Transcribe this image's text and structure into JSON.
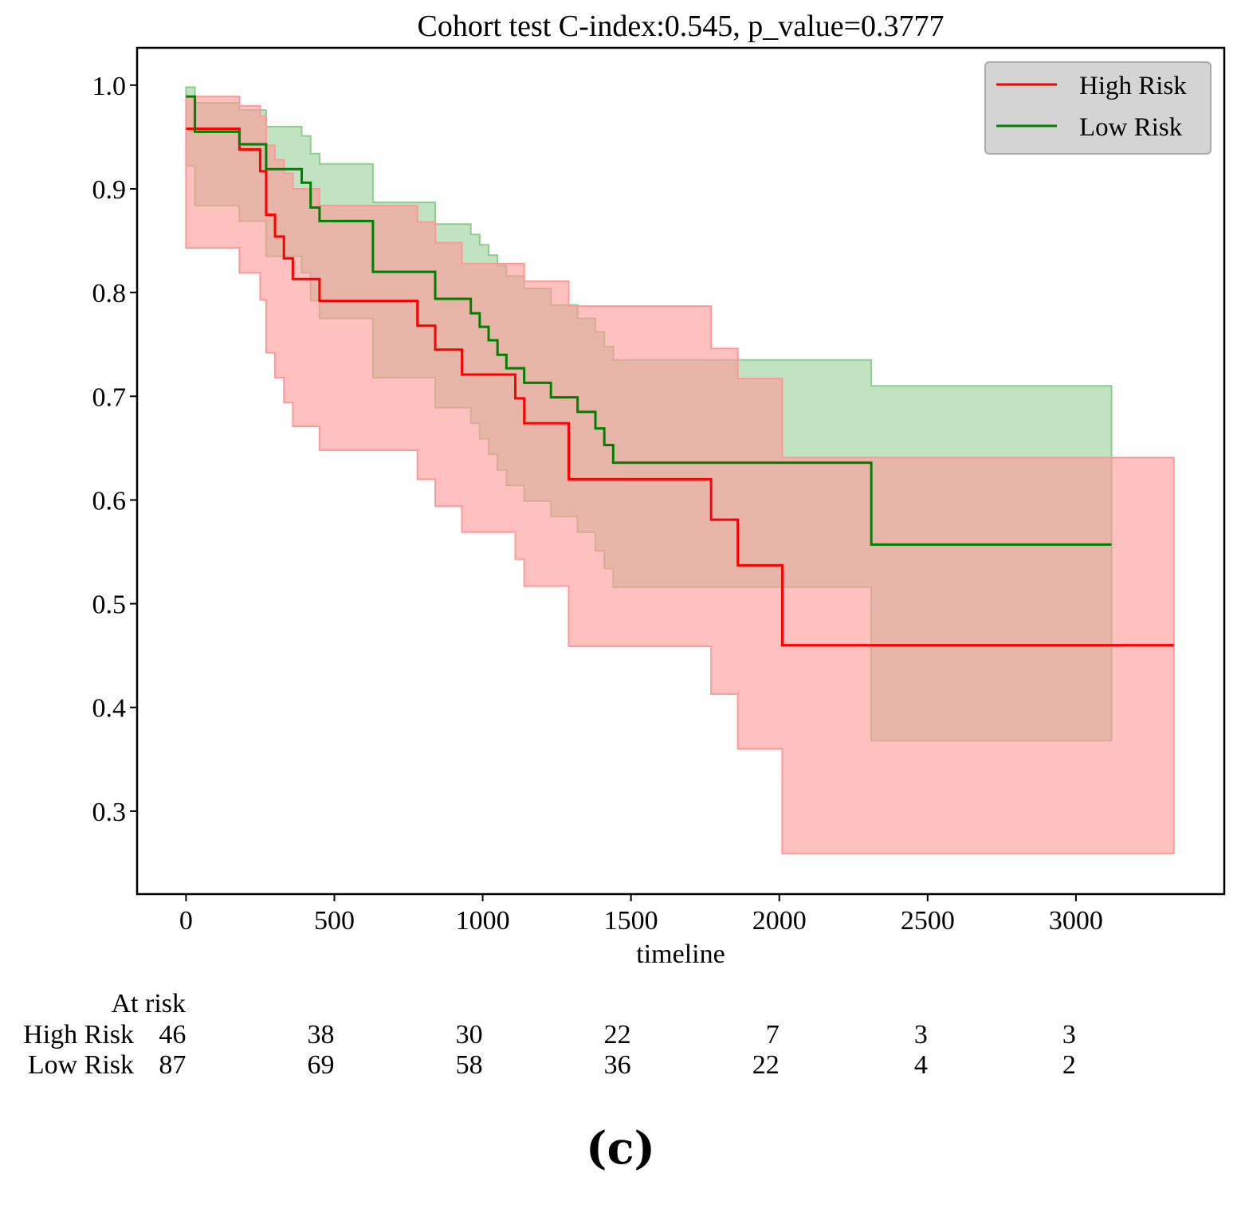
{
  "caption": "(c)",
  "chart_data": {
    "type": "line",
    "subtype": "kaplan-meier survival step curve with confidence bands",
    "title": "Cohort test C-index:0.545, p_value=0.3777",
    "xlabel": "timeline",
    "ylabel": "",
    "xlim": [
      -165,
      3500
    ],
    "ylim": [
      0.22,
      1.036
    ],
    "xticks": [
      0,
      500,
      1000,
      1500,
      2000,
      2500,
      3000
    ],
    "yticks": [
      0.3,
      0.4,
      0.5,
      0.6,
      0.7,
      0.8,
      0.9,
      1.0
    ],
    "tick_labels_x": [
      "0",
      "500",
      "1000",
      "1500",
      "2000",
      "2500",
      "3000"
    ],
    "tick_labels_y": [
      "0.3",
      "0.4",
      "0.5",
      "0.6",
      "0.7",
      "0.8",
      "0.9",
      "1.0"
    ],
    "grid": false,
    "legend_position": "top-right",
    "series": [
      {
        "name": "High Risk",
        "color": "#ff0000",
        "band_color": "#ff9999",
        "x": [
          0,
          180,
          250,
          270,
          300,
          330,
          360,
          450,
          780,
          840,
          930,
          1110,
          1140,
          1290,
          1770,
          1860,
          2010,
          3330
        ],
        "y": [
          0.958,
          0.938,
          0.917,
          0.875,
          0.854,
          0.833,
          0.813,
          0.792,
          0.768,
          0.745,
          0.721,
          0.698,
          0.674,
          0.62,
          0.581,
          0.537,
          0.46,
          0.46
        ],
        "lower": [
          0.843,
          0.819,
          0.793,
          0.742,
          0.718,
          0.694,
          0.671,
          0.648,
          0.62,
          0.594,
          0.569,
          0.543,
          0.517,
          0.459,
          0.413,
          0.36,
          0.259,
          0.259
        ],
        "upper": [
          0.989,
          0.98,
          0.97,
          0.942,
          0.928,
          0.915,
          0.9,
          0.884,
          0.868,
          0.848,
          0.828,
          0.828,
          0.811,
          0.787,
          0.746,
          0.717,
          0.641,
          0.641
        ]
      },
      {
        "name": "Low Risk",
        "color": "#008000",
        "band_color": "#8fcc8f",
        "x": [
          0,
          30,
          180,
          270,
          390,
          420,
          450,
          630,
          840,
          960,
          990,
          1020,
          1050,
          1080,
          1140,
          1230,
          1320,
          1380,
          1410,
          1440,
          2310,
          3120
        ],
        "y": [
          0.989,
          0.955,
          0.943,
          0.919,
          0.906,
          0.882,
          0.869,
          0.82,
          0.794,
          0.78,
          0.767,
          0.754,
          0.74,
          0.727,
          0.713,
          0.699,
          0.685,
          0.669,
          0.653,
          0.636,
          0.557,
          0.557
        ],
        "lower": [
          0.922,
          0.884,
          0.869,
          0.835,
          0.819,
          0.792,
          0.775,
          0.718,
          0.689,
          0.674,
          0.659,
          0.644,
          0.629,
          0.614,
          0.599,
          0.584,
          0.569,
          0.551,
          0.534,
          0.516,
          0.368,
          0.368
        ],
        "upper": [
          0.998,
          0.983,
          0.976,
          0.96,
          0.951,
          0.934,
          0.924,
          0.887,
          0.866,
          0.856,
          0.846,
          0.836,
          0.826,
          0.816,
          0.804,
          0.788,
          0.775,
          0.762,
          0.748,
          0.735,
          0.71,
          0.71
        ]
      }
    ],
    "end_times": [
      3330,
      3120
    ]
  },
  "at_risk": {
    "header": "At risk",
    "times": [
      0,
      500,
      1000,
      1500,
      2000,
      2500,
      3000
    ],
    "rows": [
      {
        "label": "High Risk",
        "counts": [
          "46",
          "38",
          "30",
          "22",
          "7",
          "3",
          "3"
        ]
      },
      {
        "label": "Low Risk",
        "counts": [
          "87",
          "69",
          "58",
          "36",
          "22",
          "4",
          "2"
        ]
      }
    ]
  }
}
